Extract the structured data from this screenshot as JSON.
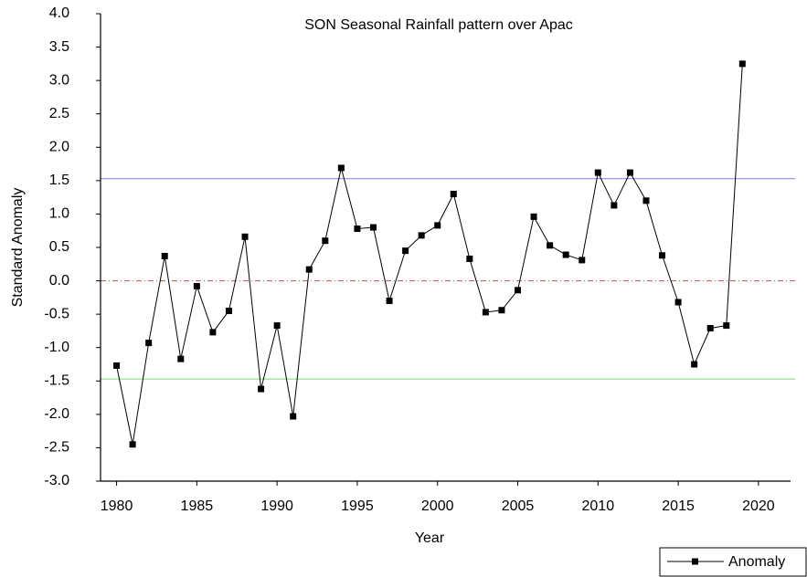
{
  "chart_data": {
    "type": "line",
    "title": "SON Seasonal Rainfall pattern over Apac",
    "x_label": "Year",
    "y_label": "Standard Anomaly",
    "x": [
      1980,
      1981,
      1982,
      1983,
      1984,
      1985,
      1986,
      1987,
      1988,
      1989,
      1990,
      1991,
      1992,
      1993,
      1994,
      1995,
      1996,
      1997,
      1998,
      1999,
      2000,
      2001,
      2002,
      2003,
      2004,
      2005,
      2006,
      2007,
      2008,
      2009,
      2010,
      2011,
      2012,
      2013,
      2014,
      2015,
      2016,
      2017,
      2018,
      2019
    ],
    "series": [
      {
        "name": "Anomaly",
        "color": "#000000",
        "values": [
          -1.27,
          -2.45,
          -0.93,
          0.37,
          -1.17,
          -0.08,
          -0.77,
          -0.45,
          0.66,
          -1.62,
          -0.67,
          -2.03,
          0.17,
          0.6,
          1.69,
          0.78,
          0.8,
          -0.3,
          0.45,
          0.68,
          0.83,
          1.3,
          0.33,
          -0.47,
          -0.44,
          -0.14,
          0.96,
          0.53,
          0.39,
          0.31,
          1.62,
          1.13,
          1.62,
          1.2,
          0.38,
          -0.32,
          -1.25,
          -0.71,
          -0.67,
          3.25
        ]
      }
    ],
    "reference_lines": [
      {
        "value": 1.53,
        "color": "#8c8cf0",
        "dashed": false
      },
      {
        "value": 0.0,
        "color": "#d06060",
        "dashed": true
      },
      {
        "value": -1.47,
        "color": "#90e090",
        "dashed": false
      }
    ],
    "xlim": [
      1979,
      2022
    ],
    "xticks": [
      1980,
      1985,
      1990,
      1995,
      2000,
      2005,
      2010,
      2015,
      2020
    ],
    "ylim": [
      -3,
      4
    ],
    "yticks": [
      {
        "value": 4,
        "label": "4.0"
      },
      3.5,
      {
        "value": 3,
        "label": "3.0"
      },
      2.5,
      {
        "value": 2,
        "label": "2.0"
      },
      1.5,
      {
        "value": 1,
        "label": "1.0"
      },
      0.5,
      {
        "value": 0,
        "label": "0.0"
      },
      -0.5,
      {
        "value": -1,
        "label": "-1.0"
      },
      -1.5,
      {
        "value": -2,
        "label": "-2.0"
      },
      -2.5,
      {
        "value": -3,
        "label": "-3.0"
      }
    ],
    "legend": "bottom-right"
  }
}
